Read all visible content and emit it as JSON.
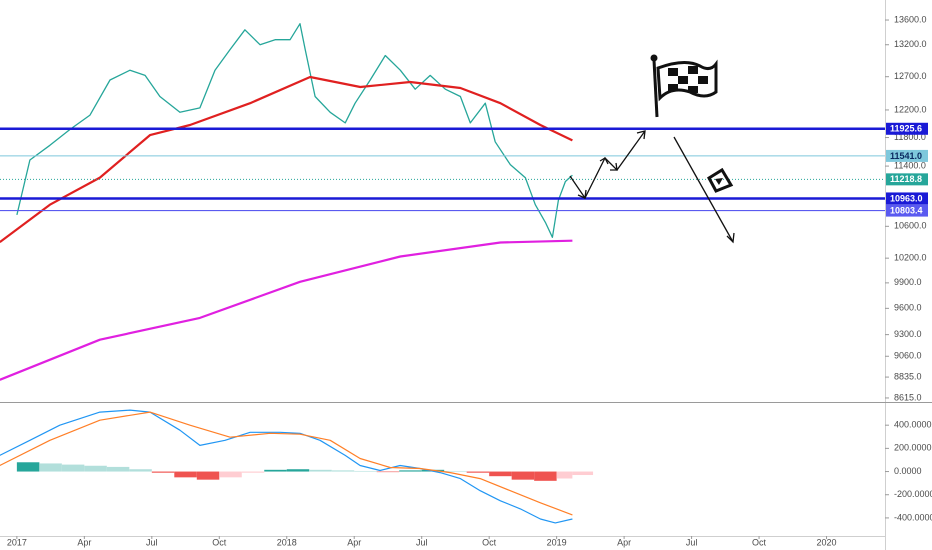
{
  "chart_data": [
    {
      "type": "line",
      "log_scale": true,
      "xlim": [
        -0.75,
        38.6
      ],
      "ylim": [
        8573,
        13933
      ],
      "yticks": [
        {
          "value": 13600,
          "label": "13600.0"
        },
        {
          "value": 13200,
          "label": "13200.0"
        },
        {
          "value": 12700,
          "label": "12700.0"
        },
        {
          "value": 12200,
          "label": "12200.0"
        },
        {
          "value": 11800,
          "label": "11800.0"
        },
        {
          "value": 11400,
          "label": "11400.0"
        },
        {
          "value": 10600,
          "label": "10600.0"
        },
        {
          "value": 10200,
          "label": "10200.0"
        },
        {
          "value": 9900,
          "label": "9900.0"
        },
        {
          "value": 9600,
          "label": "9600.0"
        },
        {
          "value": 9300,
          "label": "9300.0"
        },
        {
          "value": 9060,
          "label": "9060.0"
        },
        {
          "value": 8835,
          "label": "8835.0"
        },
        {
          "value": 8615,
          "label": "8615.0"
        }
      ],
      "series": [
        {
          "color": "#26a69a",
          "width": 1.3,
          "x": [
            0,
            0.58,
            1.47,
            2.36,
            3.25,
            4.14,
            5.03,
            5.7,
            6.36,
            7.25,
            8.14,
            8.81,
            9.48,
            10.14,
            10.81,
            11.48,
            12.15,
            12.59,
            12.82,
            13.26,
            13.93,
            14.6,
            15.04,
            15.71,
            16.38,
            17.05,
            17.71,
            18.38,
            19.05,
            19.72,
            20.16,
            20.83,
            21.27,
            21.94,
            22.61,
            23.05,
            23.5,
            23.81,
            24.08,
            24.39,
            24.7
          ],
          "values": [
            10747,
            11484,
            11690,
            11915,
            12125,
            12650,
            12800,
            12720,
            12400,
            12165,
            12230,
            12800,
            13125,
            13440,
            13200,
            13280,
            13280,
            13540,
            13125,
            12400,
            12165,
            12010,
            12300,
            12650,
            13030,
            12800,
            12510,
            12720,
            12510,
            12400,
            12010,
            12300,
            11740,
            11420,
            11240,
            10880,
            10650,
            10460,
            10940,
            11190,
            11275
          ]
        },
        {
          "color": "#e02020",
          "width": 2.2,
          "x": [
            -0.76,
            1.47,
            3.69,
            5.92,
            7.7,
            10.37,
            13.04,
            15.27,
            17.49,
            19.72,
            21.5,
            23.28,
            24.7
          ],
          "values": [
            10400,
            10880,
            11243,
            11835,
            11980,
            12300,
            12695,
            12543,
            12619,
            12528,
            12300,
            11980,
            11760
          ]
        },
        {
          "color": "#e020e0",
          "width": 2.2,
          "x": [
            -0.76,
            3.69,
            8.14,
            12.59,
            17.05,
            21.5,
            24.7
          ],
          "values": [
            8806,
            9243,
            9490,
            9913,
            10220,
            10395,
            10418
          ]
        }
      ],
      "levels": [
        {
          "value": 11925.6,
          "label": "11925.6",
          "color": "#1a1ad6",
          "width": 2.5
        },
        {
          "value": 11541.0,
          "label": "11541.0",
          "color": "#7ec8dc",
          "width": 1
        },
        {
          "value": 11218.8,
          "label": "11218.8",
          "color": "#26a69a",
          "width": 1
        },
        {
          "value": 10963.0,
          "label": "10963.0",
          "color": "#1a1ad6",
          "width": 2.5
        },
        {
          "value": 10803.4,
          "label": "10803.4",
          "color": "#5a5af0",
          "width": 1.2
        }
      ]
    },
    {
      "type": "macd",
      "xlim": [
        -0.75,
        38.6
      ],
      "ylim": [
        -556,
        600
      ],
      "yticks": [
        {
          "value": 400,
          "label": "400.0000"
        },
        {
          "value": 200,
          "label": "200.0000"
        },
        {
          "value": 0,
          "label": "0.0000"
        },
        {
          "value": -200,
          "label": "-200.0000"
        },
        {
          "value": -400,
          "label": "-400.0000"
        }
      ],
      "xticks": [
        {
          "value": 0,
          "label": "2017"
        },
        {
          "value": 3,
          "label": "Apr"
        },
        {
          "value": 6,
          "label": "Jul"
        },
        {
          "value": 9,
          "label": "Oct"
        },
        {
          "value": 12,
          "label": "2018"
        },
        {
          "value": 15,
          "label": "Apr"
        },
        {
          "value": 18,
          "label": "Jul"
        },
        {
          "value": 21,
          "label": "Oct"
        },
        {
          "value": 24,
          "label": "2019"
        },
        {
          "value": 27,
          "label": "Apr"
        },
        {
          "value": 30,
          "label": "Jul"
        },
        {
          "value": 33,
          "label": "Oct"
        },
        {
          "value": 36,
          "label": "2020"
        }
      ],
      "histogram": {
        "x": [
          0,
          1,
          2,
          3,
          4,
          5,
          6,
          7,
          8,
          9,
          10,
          11,
          12,
          13,
          14,
          15,
          16,
          17,
          18,
          19,
          20,
          21,
          22,
          23,
          24,
          24.7
        ],
        "values": [
          80,
          70,
          60,
          50,
          40,
          20,
          -10,
          -50,
          -70,
          -50,
          -10,
          15,
          20,
          15,
          10,
          5,
          -5,
          10,
          15,
          5,
          -10,
          -40,
          -70,
          -80,
          -60,
          -30
        ]
      },
      "series": [
        {
          "color": "#2196f3",
          "width": 1.2,
          "x": [
            -0.76,
            0.58,
            1.91,
            3.69,
            5.03,
            5.92,
            7.25,
            8.14,
            9.26,
            10.37,
            11.7,
            12.59,
            13.48,
            14.6,
            15.26,
            16.15,
            17.04,
            17.93,
            18.82,
            19.72,
            20.6,
            21.5,
            22.39,
            23.28,
            23.94,
            24.7
          ],
          "values": [
            139,
            270,
            400,
            513,
            530,
            513,
            357,
            226,
            270,
            339,
            339,
            330,
            270,
            139,
            52,
            9,
            52,
            26,
            -9,
            -61,
            -165,
            -252,
            -322,
            -409,
            -443,
            -409
          ]
        },
        {
          "color": "#ff7f27",
          "width": 1.2,
          "x": [
            -0.76,
            1.47,
            3.69,
            5.92,
            7.7,
            9.48,
            11.26,
            12.59,
            13.93,
            15.26,
            16.6,
            17.93,
            19.27,
            20.6,
            21.94,
            23.28,
            24.7
          ],
          "values": [
            52,
            270,
            443,
            513,
            400,
            296,
            330,
            322,
            270,
            113,
            35,
            26,
            -9,
            -61,
            -165,
            -270,
            -374
          ]
        }
      ]
    }
  ]
}
